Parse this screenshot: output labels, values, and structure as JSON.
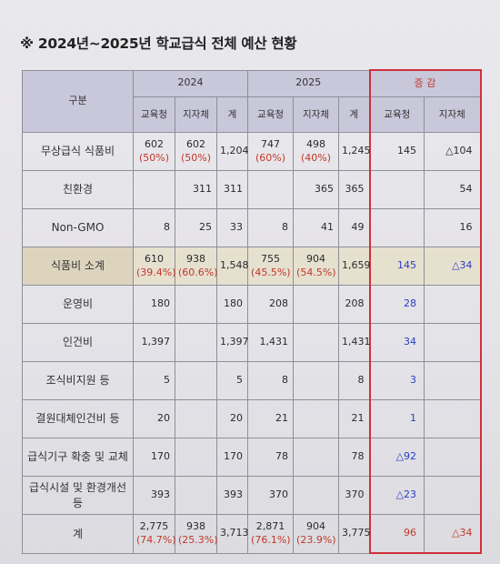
{
  "title": "※ 2024년~2025년 학교급식 전체 예산 현황",
  "header": {
    "category": "구분",
    "year1": "2024",
    "year2": "2025",
    "change": "증 감",
    "sub": [
      "교육청",
      "지자체",
      "계",
      "교육청",
      "지자체",
      "계",
      "교육청",
      "지자체"
    ]
  },
  "rows": [
    {
      "label": "무상급식 식품비",
      "v1_edu": "602",
      "v1_edu_pct": "(50%)",
      "v1_loc": "602",
      "v1_loc_pct": "(50%)",
      "v1_total": "1,204",
      "v2_edu": "747",
      "v2_edu_pct": "(60%)",
      "v2_loc": "498",
      "v2_loc_pct": "(40%)",
      "v2_total": "1,245",
      "d_edu": "145",
      "d_loc": "△104"
    },
    {
      "label": "친환경",
      "v1_edu": "",
      "v1_loc": "311",
      "v1_total": "311",
      "v2_edu": "",
      "v2_loc": "365",
      "v2_total": "365",
      "d_edu": "",
      "d_loc": "54"
    },
    {
      "label": "Non-GMO",
      "v1_edu": "8",
      "v1_loc": "25",
      "v1_total": "33",
      "v2_edu": "8",
      "v2_loc": "41",
      "v2_total": "49",
      "d_edu": "",
      "d_loc": "16"
    },
    {
      "label": "식품비 소계",
      "v1_edu": "610",
      "v1_edu_pct": "(39.4%)",
      "v1_loc": "938",
      "v1_loc_pct": "(60.6%)",
      "v1_total": "1,548",
      "v2_edu": "755",
      "v2_edu_pct": "(45.5%)",
      "v2_loc": "904",
      "v2_loc_pct": "(54.5%)",
      "v2_total": "1,659",
      "d_edu": "145",
      "d_loc": "△34"
    },
    {
      "label": "운영비",
      "v1_edu": "180",
      "v1_loc": "",
      "v1_total": "180",
      "v2_edu": "208",
      "v2_loc": "",
      "v2_total": "208",
      "d_edu": "28",
      "d_loc": ""
    },
    {
      "label": "인건비",
      "v1_edu": "1,397",
      "v1_loc": "",
      "v1_total": "1,397",
      "v2_edu": "1,431",
      "v2_loc": "",
      "v2_total": "1,431",
      "d_edu": "34",
      "d_loc": ""
    },
    {
      "label": "조식비지원 등",
      "v1_edu": "5",
      "v1_loc": "",
      "v1_total": "5",
      "v2_edu": "8",
      "v2_loc": "",
      "v2_total": "8",
      "d_edu": "3",
      "d_loc": ""
    },
    {
      "label": "결원대체인건비 등",
      "v1_edu": "20",
      "v1_loc": "",
      "v1_total": "20",
      "v2_edu": "21",
      "v2_loc": "",
      "v2_total": "21",
      "d_edu": "1",
      "d_loc": ""
    },
    {
      "label": "급식기구 확충 및 교체",
      "v1_edu": "170",
      "v1_loc": "",
      "v1_total": "170",
      "v2_edu": "78",
      "v2_loc": "",
      "v2_total": "78",
      "d_edu": "△92",
      "d_loc": ""
    },
    {
      "label": "급식시설 및 환경개선 등",
      "v1_edu": "393",
      "v1_loc": "",
      "v1_total": "393",
      "v2_edu": "370",
      "v2_loc": "",
      "v2_total": "370",
      "d_edu": "△23",
      "d_loc": ""
    },
    {
      "label": "계",
      "v1_edu": "2,775",
      "v1_edu_pct": "(74.7%)",
      "v1_loc": "938",
      "v1_loc_pct": "(25.3%)",
      "v1_total": "3,713",
      "v2_edu": "2,871",
      "v2_edu_pct": "(76.1%)",
      "v2_loc": "904",
      "v2_loc_pct": "(23.9%)",
      "v2_total": "3,775",
      "d_edu": "96",
      "d_loc": "△34"
    }
  ],
  "colors": {
    "change_frame": "#d0303a",
    "percent": "#c0392b",
    "increase_edu": "#2a3dc4",
    "header_bg": "#c9c7da",
    "subtotal_bg": "#e6e0cf"
  }
}
